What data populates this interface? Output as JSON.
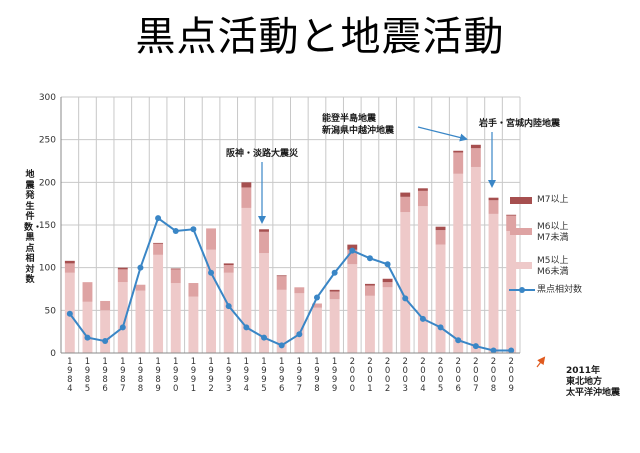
{
  "title": "黒点活動と地震活動",
  "colors": {
    "m7": "#a64f4f",
    "m6": "#dea3a3",
    "m5": "#eec9c9",
    "line": "#3a86c6",
    "arrow": "#3a86c6",
    "footnote_arrow": "#e05a1e"
  },
  "annotations": {
    "kobe": "阪神・淡路大震災",
    "noto_line1": "能登半島地震",
    "noto_line2": "新潟県中越沖地震",
    "iwate": "岩手・宮城内陸地震"
  },
  "footnote": {
    "line1": "2011年",
    "line2": "東北地方",
    "line3": "太平洋沖地震"
  },
  "legend": {
    "m7": "M7以上",
    "m6_line1": "M6以上",
    "m6_line2": "M7未満",
    "m5_line1": "M5以上",
    "m5_line2": "M6未満",
    "line": "黒点相対数"
  },
  "chart_data": {
    "type": "bar",
    "stacked": true,
    "ylabel": "地震発生件数・黒点相対数",
    "ylim": [
      0,
      300
    ],
    "yticks": [
      0,
      50,
      100,
      150,
      200,
      250,
      300
    ],
    "grid": true,
    "legend_position": "right",
    "categories": [
      "1984",
      "1985",
      "1986",
      "1987",
      "1988",
      "1989",
      "1990",
      "1991",
      "1992",
      "1993",
      "1994",
      "1995",
      "1996",
      "1997",
      "1998",
      "1999",
      "2000",
      "2001",
      "2002",
      "2003",
      "2004",
      "2005",
      "2006",
      "2007",
      "2008",
      "2009"
    ],
    "series": [
      {
        "name": "M5以上M6未満",
        "values": [
          94,
          60,
          50,
          83,
          73,
          115,
          82,
          66,
          121,
          94,
          170,
          117,
          74,
          70,
          53,
          63,
          104,
          67,
          77,
          165,
          172,
          127,
          210,
          218,
          163,
          143
        ]
      },
      {
        "name": "M6以上M7未満",
        "values": [
          11,
          23,
          11,
          15,
          7,
          13,
          16,
          16,
          25,
          9,
          24,
          25,
          16,
          7,
          5,
          9,
          17,
          12,
          6,
          18,
          18,
          17,
          25,
          22,
          16,
          18
        ]
      },
      {
        "name": "M7以上",
        "values": [
          3,
          0,
          0,
          2,
          0,
          1,
          1,
          0,
          0,
          2,
          6,
          3,
          1,
          0,
          0,
          2,
          6,
          2,
          4,
          5,
          3,
          4,
          2,
          4,
          3,
          1
        ]
      },
      {
        "name": "黒点相対数",
        "type": "line",
        "values": [
          46,
          18,
          14,
          30,
          100,
          158,
          143,
          145,
          94,
          55,
          30,
          18,
          9,
          22,
          65,
          94,
          120,
          111,
          104,
          64,
          40,
          30,
          15,
          8,
          3,
          3
        ]
      }
    ]
  }
}
